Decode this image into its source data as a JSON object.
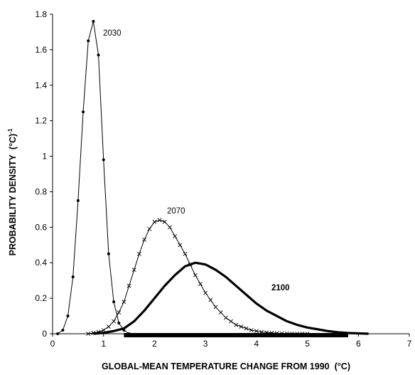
{
  "chart_data": {
    "type": "line",
    "title": "",
    "xlabel": "GLOBAL-MEAN TEMPERATURE CHANGE FROM 1990",
    "xlabel_unit": "(°C)",
    "ylabel": "PROBABILITY DENSITY",
    "ylabel_unit": "(°C)",
    "ylabel_unit_exponent": "-1",
    "xlim": [
      0,
      7
    ],
    "ylim": [
      0,
      1.8
    ],
    "x_ticks": [
      "0",
      "1",
      "2",
      "3",
      "4",
      "5",
      "6",
      "7"
    ],
    "y_ticks": [
      "0",
      "0.2",
      "0.4",
      "0.6",
      "0.8",
      "1",
      "1.2",
      "1.4",
      "1.6",
      "1.8"
    ],
    "grid": false,
    "series": [
      {
        "name": "2030",
        "marker": "dot",
        "line_weight": "thin",
        "x": [
          0.1,
          0.2,
          0.3,
          0.4,
          0.5,
          0.6,
          0.7,
          0.8,
          0.9,
          1.0,
          1.1,
          1.2,
          1.3,
          1.4,
          1.5
        ],
        "y": [
          0.0,
          0.02,
          0.1,
          0.32,
          0.75,
          1.25,
          1.65,
          1.76,
          1.57,
          0.98,
          0.45,
          0.18,
          0.06,
          0.02,
          0.0
        ]
      },
      {
        "name": "2070",
        "marker": "cross",
        "line_weight": "thin",
        "x": [
          0.7,
          0.8,
          0.9,
          1.0,
          1.1,
          1.2,
          1.3,
          1.4,
          1.5,
          1.6,
          1.7,
          1.8,
          1.9,
          2.0,
          2.1,
          2.2,
          2.3,
          2.4,
          2.5,
          2.6,
          2.7,
          2.8,
          2.9,
          3.0,
          3.1,
          3.2,
          3.3,
          3.4,
          3.5,
          3.6,
          3.7,
          3.8,
          3.9,
          4.0,
          4.1,
          4.2,
          4.3,
          4.4,
          4.5,
          4.6,
          4.7,
          4.8,
          4.9,
          5.0
        ],
        "y": [
          0.0,
          0.005,
          0.01,
          0.02,
          0.04,
          0.07,
          0.12,
          0.18,
          0.27,
          0.36,
          0.45,
          0.53,
          0.59,
          0.63,
          0.64,
          0.63,
          0.6,
          0.55,
          0.5,
          0.45,
          0.39,
          0.33,
          0.28,
          0.23,
          0.19,
          0.15,
          0.12,
          0.09,
          0.07,
          0.05,
          0.04,
          0.03,
          0.02,
          0.015,
          0.01,
          0.007,
          0.005,
          0.003,
          0.002,
          0.001,
          0.0005,
          0.0002,
          0.0001,
          0.0
        ]
      },
      {
        "name": "2100",
        "marker": "none",
        "line_weight": "thick",
        "x": [
          0.8,
          1.0,
          1.2,
          1.4,
          1.6,
          1.8,
          2.0,
          2.2,
          2.4,
          2.6,
          2.8,
          3.0,
          3.2,
          3.4,
          3.6,
          3.8,
          4.0,
          4.2,
          4.4,
          4.6,
          4.8,
          5.0,
          5.2,
          5.4,
          5.6,
          5.8,
          6.0,
          6.2
        ],
        "y": [
          0.0,
          0.005,
          0.015,
          0.03,
          0.07,
          0.13,
          0.2,
          0.27,
          0.33,
          0.38,
          0.4,
          0.39,
          0.36,
          0.32,
          0.27,
          0.22,
          0.17,
          0.13,
          0.1,
          0.07,
          0.05,
          0.035,
          0.025,
          0.015,
          0.008,
          0.004,
          0.002,
          0.0
        ]
      }
    ],
    "range_bar": {
      "x_start": 1.4,
      "x_end": 5.8
    }
  },
  "labels": {
    "s2030": "2030",
    "s2070": "2070",
    "s2100": "2100"
  }
}
